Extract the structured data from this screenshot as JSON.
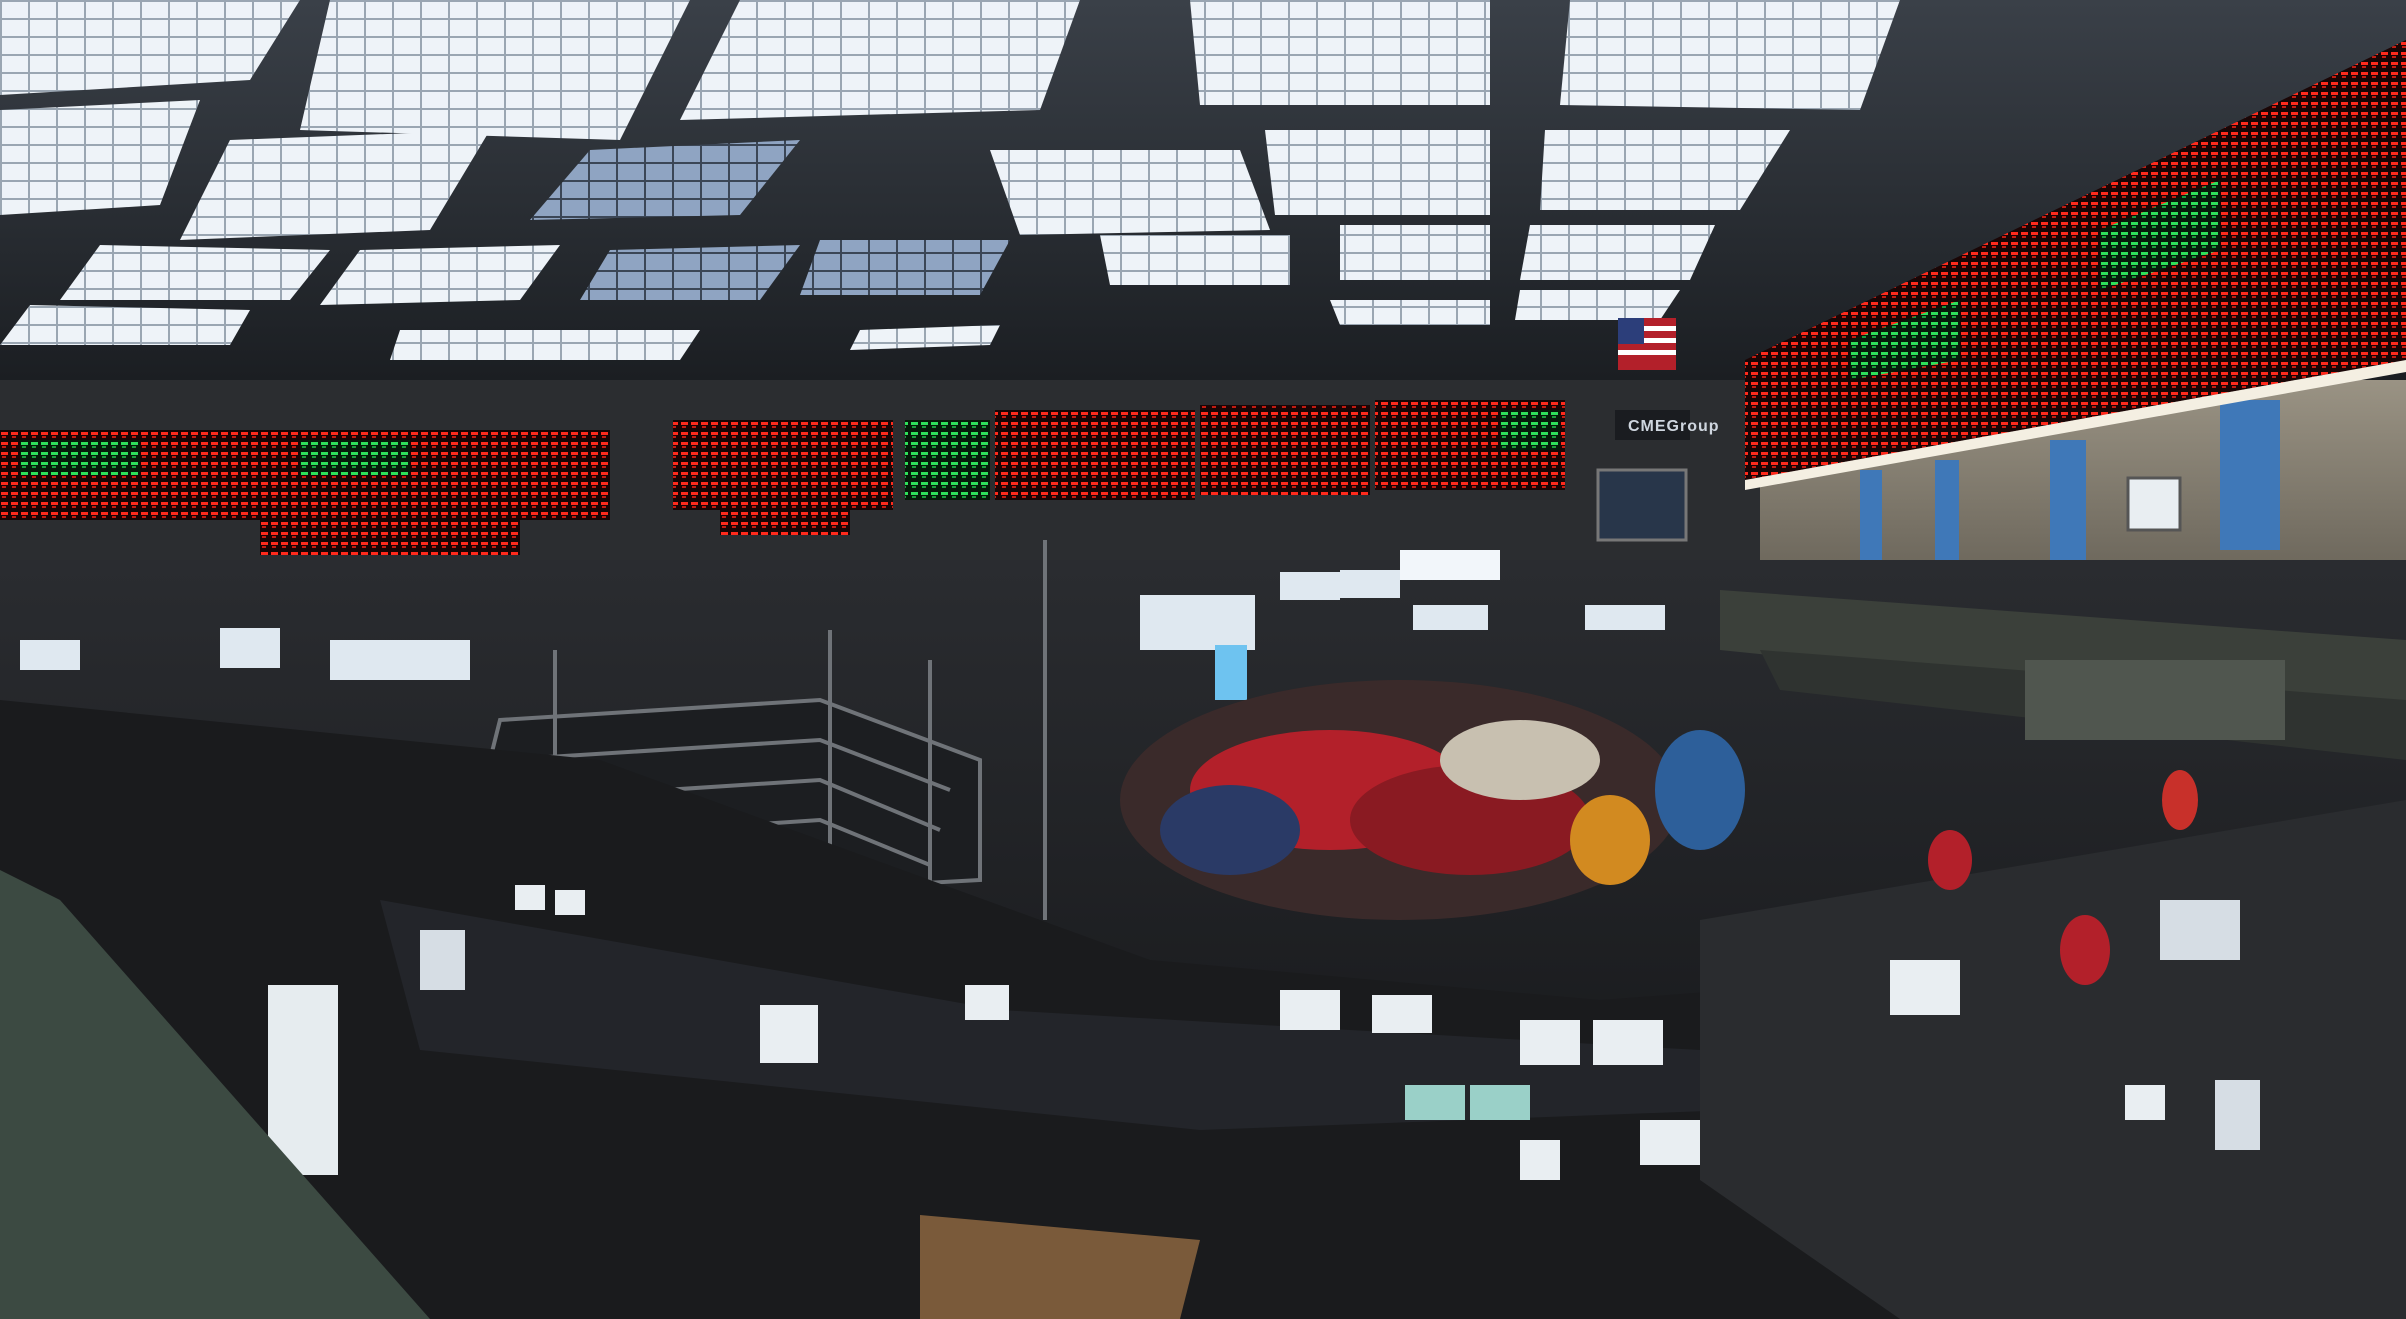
{
  "scene": {
    "description_colors": {
      "ceiling": "#2a2f36",
      "skylight": "#eef3f8",
      "board_bg": "#1a0808",
      "board_red": "#ff2a1c",
      "board_green": "#2ee05a",
      "floor": "#1d1f22",
      "wall": "#8a8478",
      "pillar": "#3f78b8",
      "crowd_red": "#b3202a",
      "screen": "#dfe8f0"
    },
    "sign_text": "CMEGroup"
  }
}
